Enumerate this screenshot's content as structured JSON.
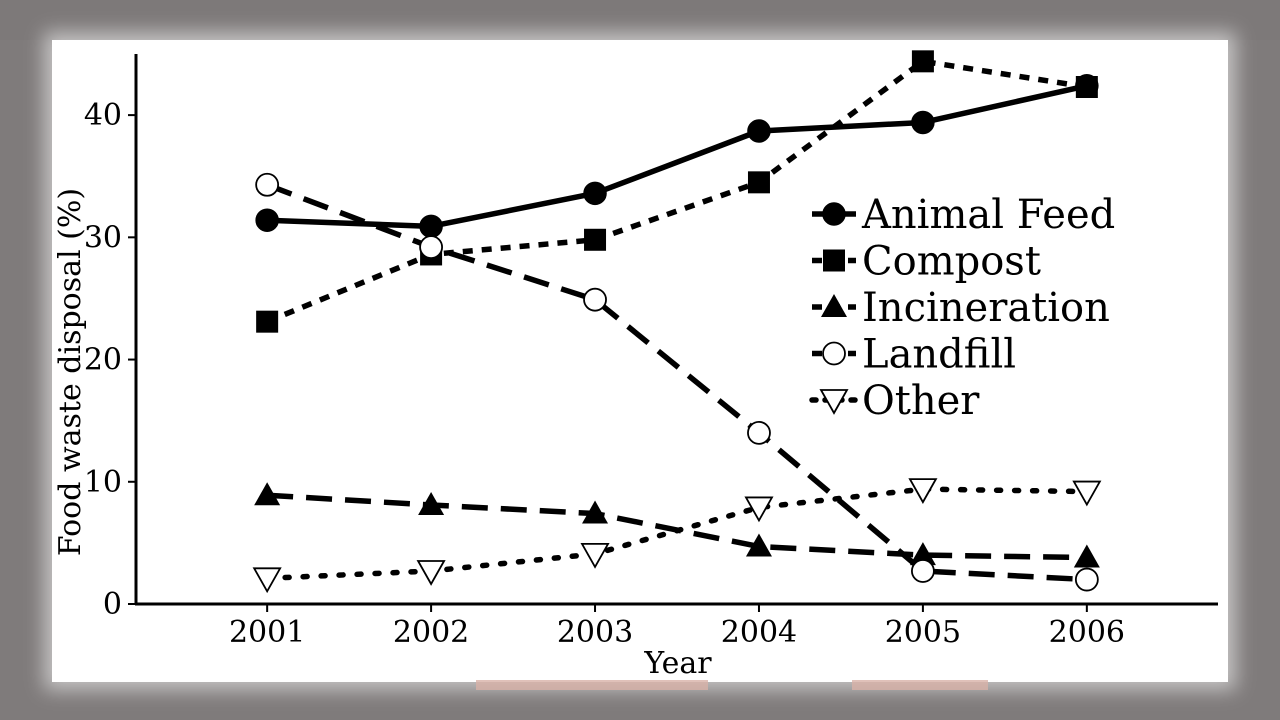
{
  "chart_data": {
    "type": "line",
    "title": "",
    "xlabel": "Year",
    "ylabel": "Food waste disposal (%)",
    "x": [
      2001,
      2002,
      2003,
      2004,
      2005,
      2006
    ],
    "x_tick_labels": [
      "2001",
      "2002",
      "2003",
      "2004",
      "2005",
      "2006"
    ],
    "y_ticks": [
      0,
      10,
      20,
      30,
      40
    ],
    "y_tick_labels": [
      "0",
      "10",
      "20",
      "30",
      "40"
    ],
    "xlim": [
      2000.2,
      2006.8
    ],
    "ylim": [
      0,
      45
    ],
    "grid": false,
    "legend_position": "right",
    "series": [
      {
        "name": "Animal Feed",
        "values": [
          31.4,
          30.9,
          33.6,
          38.7,
          39.4,
          42.4
        ],
        "marker": "circle-filled",
        "line": "solid",
        "color": "#000000"
      },
      {
        "name": "Compost",
        "values": [
          23.1,
          28.6,
          29.8,
          34.5,
          44.4,
          42.3
        ],
        "marker": "square-filled",
        "line": "short-dash",
        "color": "#000000"
      },
      {
        "name": "Incineration",
        "values": [
          8.9,
          8.1,
          7.4,
          4.7,
          4.0,
          3.8
        ],
        "marker": "triangle-filled",
        "line": "long-dash",
        "color": "#000000"
      },
      {
        "name": "Landfill",
        "values": [
          34.3,
          29.2,
          24.9,
          14.0,
          2.7,
          2.0
        ],
        "marker": "circle-open",
        "line": "long-dash",
        "color": "#000000"
      },
      {
        "name": "Other",
        "values": [
          2.1,
          2.7,
          4.1,
          7.9,
          9.4,
          9.2
        ],
        "marker": "triangle-down-open",
        "line": "dotted",
        "color": "#000000"
      }
    ]
  }
}
